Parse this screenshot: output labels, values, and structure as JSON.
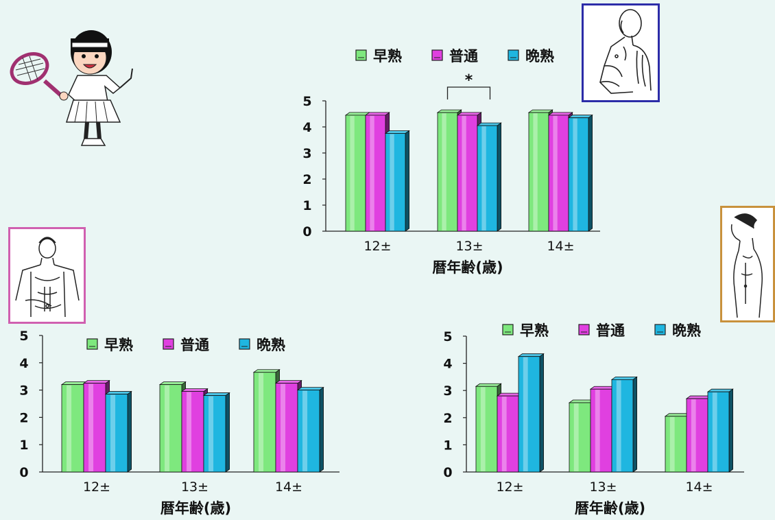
{
  "colors": {
    "early": "#7ee87e",
    "normal": "#e040e0",
    "late": "#1fb6e0",
    "frame_top": "#2c2ca8",
    "frame_left": "#d060b0",
    "frame_right": "#c8913c"
  },
  "icons": [
    "tennis-girl-icon",
    "heavy-man-figure-icon",
    "muscular-man-figure-icon",
    "slim-man-figure-icon"
  ],
  "chart_data": [
    {
      "type": "bar",
      "categories": [
        "12±",
        "13±",
        "14±"
      ],
      "series": [
        {
          "name": "早熟",
          "values": [
            4.45,
            4.55,
            4.55
          ]
        },
        {
          "name": "普通",
          "values": [
            4.45,
            4.45,
            4.45
          ]
        },
        {
          "name": "晩熟",
          "values": [
            3.75,
            4.05,
            4.35
          ]
        }
      ],
      "xlabel": "暦年齢(歳)",
      "ylabel": "",
      "ylim": [
        0,
        5
      ],
      "yticks": [
        "0",
        "1",
        "2",
        "3",
        "4",
        "5"
      ],
      "annotation": "*",
      "grid": false,
      "legend": "top"
    },
    {
      "type": "bar",
      "categories": [
        "12±",
        "13±",
        "14±"
      ],
      "series": [
        {
          "name": "早熟",
          "values": [
            3.2,
            3.2,
            3.65
          ]
        },
        {
          "name": "普通",
          "values": [
            3.25,
            2.95,
            3.25
          ]
        },
        {
          "name": "晩熟",
          "values": [
            2.85,
            2.8,
            3.0
          ]
        }
      ],
      "xlabel": "暦年齢(歳)",
      "ylabel": "",
      "ylim": [
        0,
        5
      ],
      "yticks": [
        "0",
        "1",
        "2",
        "3",
        "4",
        "5"
      ],
      "grid": false,
      "legend": "top"
    },
    {
      "type": "bar",
      "categories": [
        "12±",
        "13±",
        "14±"
      ],
      "series": [
        {
          "name": "早熟",
          "values": [
            3.15,
            2.55,
            2.05
          ]
        },
        {
          "name": "普通",
          "values": [
            2.8,
            3.05,
            2.7
          ]
        },
        {
          "name": "晩熟",
          "values": [
            4.25,
            3.4,
            2.95
          ]
        }
      ],
      "xlabel": "暦年齢(歳)",
      "ylabel": "",
      "ylim": [
        0,
        5
      ],
      "yticks": [
        "0",
        "1",
        "2",
        "3",
        "4",
        "5"
      ],
      "grid": false,
      "legend": "top"
    }
  ]
}
